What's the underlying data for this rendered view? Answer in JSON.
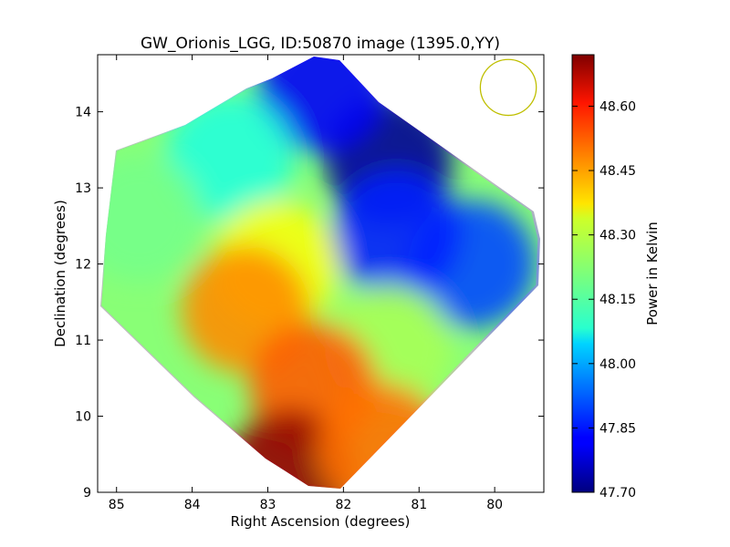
{
  "chart_data": {
    "type": "heatmap",
    "title": "GW_Orionis_LGG, ID:50870 image (1395.0,YY)",
    "xlabel": "Right Ascension (degrees)",
    "ylabel": "Declination (degrees)",
    "xlim": [
      85.25,
      79.35
    ],
    "ylim": [
      9.0,
      14.75
    ],
    "x_ticks": [
      85,
      84,
      83,
      82,
      81,
      80
    ],
    "y_ticks": [
      9,
      10,
      11,
      12,
      13,
      14
    ],
    "colorbar": {
      "label": "Power in Kelvin",
      "range": [
        47.7,
        48.72
      ],
      "ticks": [
        "47.70",
        "47.85",
        "48.00",
        "48.15",
        "48.30",
        "48.45",
        "48.60"
      ],
      "colormap": "jet"
    },
    "beam_circle": {
      "ra": 79.82,
      "dec": 14.32,
      "radius_deg": 0.37,
      "color": "#bfbf00"
    },
    "features": [
      {
        "ra": 81.4,
        "dec": 13.35,
        "value": 47.72
      },
      {
        "ra": 82.3,
        "dec": 14.3,
        "value": 47.82
      },
      {
        "ra": 80.3,
        "dec": 12.0,
        "value": 47.9
      },
      {
        "ra": 81.3,
        "dec": 12.4,
        "value": 47.86
      },
      {
        "ra": 83.5,
        "dec": 13.4,
        "value": 48.12
      },
      {
        "ra": 84.7,
        "dec": 12.6,
        "value": 48.2
      },
      {
        "ra": 82.9,
        "dec": 12.0,
        "value": 48.33
      },
      {
        "ra": 83.3,
        "dec": 11.4,
        "value": 48.45
      },
      {
        "ra": 81.4,
        "dec": 10.9,
        "value": 48.25
      },
      {
        "ra": 82.4,
        "dec": 10.4,
        "value": 48.5
      },
      {
        "ra": 82.7,
        "dec": 9.25,
        "value": 48.7
      },
      {
        "ra": 81.5,
        "dec": 9.6,
        "value": 48.48
      }
    ]
  }
}
